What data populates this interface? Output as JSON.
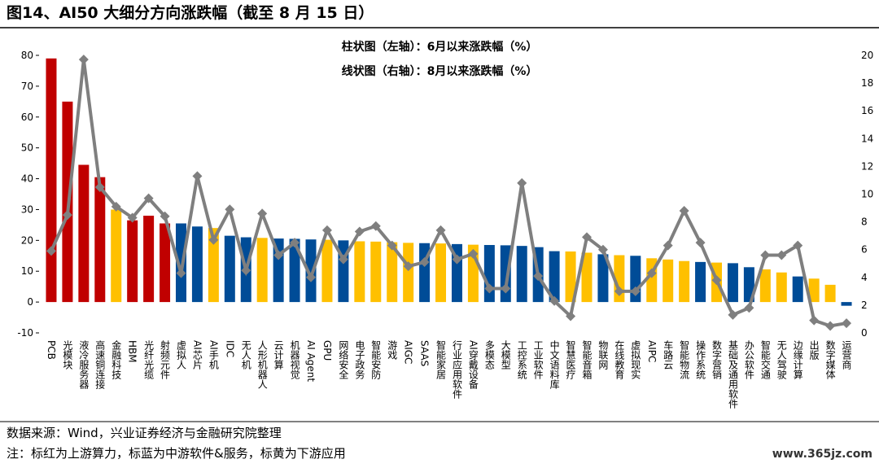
{
  "chart_data": {
    "type": "bar_line",
    "title": "图14、AI50 大细分方向涨跌幅（截至 8 月 15 日）",
    "categories": [
      "PCB",
      "光模块",
      "液冷服务器",
      "高速铜连接",
      "金融科技",
      "HBM",
      "光纤光缆",
      "射频元件",
      "虚拟人",
      "AI芯片",
      "AI手机",
      "IDC",
      "无人机",
      "人形机器人",
      "云计算",
      "机器视觉",
      "AI Agent",
      "GPU",
      "网络安全",
      "电子政务",
      "智能安防",
      "游戏",
      "AIGC",
      "SAAS",
      "智能家居",
      "行业应用软件",
      "AI穿戴设备",
      "多模态",
      "大模型",
      "工控系统",
      "工业软件",
      "中文语料库",
      "智慧医疗",
      "智能音箱",
      "物联网",
      "在线教育",
      "虚拟现实",
      "AIPC",
      "车路云",
      "智能物流",
      "操作系统",
      "数字营销",
      "基础及通用软件",
      "办公软件",
      "智能交通",
      "无人驾驶",
      "边缘计算",
      "出版",
      "数字媒体",
      "运营商"
    ],
    "series": [
      {
        "name": "柱状图（左轴）：6月以来涨跌幅（%）",
        "type": "bar",
        "axis": "y",
        "values": [
          79,
          65,
          44.5,
          40.5,
          30,
          26.5,
          28,
          25.5,
          25.5,
          24.5,
          24,
          21.5,
          21,
          20.8,
          20.6,
          20.5,
          20.3,
          20.2,
          20,
          19.7,
          19.6,
          19.4,
          19.2,
          19.1,
          19,
          18.8,
          18.6,
          18.5,
          18.4,
          18.2,
          17.8,
          16.5,
          16.4,
          16,
          15.5,
          15.2,
          15,
          14.2,
          13.8,
          13.3,
          13,
          12.8,
          12.6,
          11.3,
          10.6,
          9.6,
          8.3,
          7.6,
          5.6,
          -1.2
        ],
        "colors": [
          "#c00000",
          "#c00000",
          "#c00000",
          "#c00000",
          "#ffc000",
          "#c00000",
          "#c00000",
          "#c00000",
          "#004c97",
          "#004c97",
          "#ffc000",
          "#004c97",
          "#004c97",
          "#ffc000",
          "#004c97",
          "#004c97",
          "#004c97",
          "#ffc000",
          "#004c97",
          "#ffc000",
          "#ffc000",
          "#ffc000",
          "#ffc000",
          "#004c97",
          "#ffc000",
          "#004c97",
          "#ffc000",
          "#004c97",
          "#004c97",
          "#004c97",
          "#004c97",
          "#004c97",
          "#ffc000",
          "#ffc000",
          "#004c97",
          "#ffc000",
          "#004c97",
          "#ffc000",
          "#ffc000",
          "#ffc000",
          "#004c97",
          "#ffc000",
          "#004c97",
          "#004c97",
          "#ffc000",
          "#ffc000",
          "#004c97",
          "#ffc000",
          "#ffc000",
          "#004c97"
        ]
      },
      {
        "name": "线状图（右轴）：8月以来涨跌幅（%）",
        "type": "line",
        "axis": "y2",
        "color": "#7f7f7f",
        "values": [
          5.9,
          8.5,
          19.7,
          10.5,
          9.1,
          8.3,
          9.7,
          8.4,
          4.3,
          11.3,
          6.7,
          8.9,
          4.5,
          8.6,
          5.6,
          6.5,
          4.0,
          7.4,
          5.3,
          7.3,
          7.7,
          6.3,
          4.8,
          5.1,
          7.4,
          5.3,
          5.7,
          3.2,
          3.2,
          10.8,
          4.1,
          2.3,
          1.2,
          6.9,
          6.0,
          3.0,
          3.0,
          4.3,
          6.3,
          8.8,
          6.5,
          3.8,
          1.3,
          1.8,
          5.6,
          5.6,
          6.3,
          0.9,
          0.5,
          0.7
        ]
      }
    ],
    "ylim": [
      -10,
      80
    ],
    "yticks": [
      -10,
      0,
      10,
      20,
      30,
      40,
      50,
      60,
      70,
      80
    ],
    "y2lim": [
      0,
      20
    ],
    "y2ticks": [
      0,
      2,
      4,
      6,
      8,
      10,
      12,
      14,
      16,
      18,
      20
    ],
    "grid": false,
    "source": "数据来源：Wind，兴业证券经济与金融研究院整理",
    "note": "注：标红为上游算力，标蓝为中游软件&服务，标黄为下游应用",
    "watermark": "www.365jz.com"
  }
}
